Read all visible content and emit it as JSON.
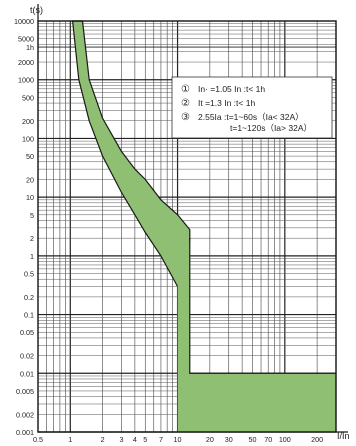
{
  "chart_data": {
    "type": "area",
    "title": "",
    "xlabel": "I/In",
    "ylabel": "t(s)",
    "xscale": "log",
    "yscale": "log",
    "xlim": [
      0.5,
      300
    ],
    "ylim": [
      0.001,
      10000
    ],
    "grid": true,
    "x_ticks": [
      {
        "v": 0.5,
        "label": "0.5"
      },
      {
        "v": 1,
        "label": "1"
      },
      {
        "v": 2,
        "label": "2"
      },
      {
        "v": 3,
        "label": "3"
      },
      {
        "v": 4,
        "label": "4"
      },
      {
        "v": 5,
        "label": "5"
      },
      {
        "v": 7,
        "label": "7"
      },
      {
        "v": 10,
        "label": "10"
      },
      {
        "v": 20,
        "label": "20"
      },
      {
        "v": 30,
        "label": "30"
      },
      {
        "v": 50,
        "label": "50"
      },
      {
        "v": 70,
        "label": "70"
      },
      {
        "v": 100,
        "label": "100"
      },
      {
        "v": 200,
        "label": "200"
      }
    ],
    "y_ticks": [
      {
        "v": 10000,
        "label": "10000"
      },
      {
        "v": 5000,
        "label": "5000"
      },
      {
        "v": 3600,
        "label": "1h"
      },
      {
        "v": 2000,
        "label": "2000"
      },
      {
        "v": 1000,
        "label": "1000"
      },
      {
        "v": 500,
        "label": "500"
      },
      {
        "v": 200,
        "label": "200"
      },
      {
        "v": 100,
        "label": "100"
      },
      {
        "v": 50,
        "label": "50"
      },
      {
        "v": 20,
        "label": "20"
      },
      {
        "v": 10,
        "label": "10"
      },
      {
        "v": 5,
        "label": "5"
      },
      {
        "v": 2,
        "label": "2"
      },
      {
        "v": 1,
        "label": "1"
      },
      {
        "v": 0.5,
        "label": "0.5"
      },
      {
        "v": 0.2,
        "label": "0.2"
      },
      {
        "v": 0.1,
        "label": "0.1"
      },
      {
        "v": 0.05,
        "label": "0.05"
      },
      {
        "v": 0.02,
        "label": "0.02"
      },
      {
        "v": 0.01,
        "label": "0.01"
      },
      {
        "v": 0.005,
        "label": "0.005"
      },
      {
        "v": 0.002,
        "label": "0.002"
      },
      {
        "v": 0.001,
        "label": "0.001"
      }
    ],
    "band": {
      "fill": "#8ebf73",
      "stroke": "#1a1a1a",
      "upper": [
        [
          1.3,
          10000
        ],
        [
          1.5,
          1000
        ],
        [
          2,
          220
        ],
        [
          3,
          60
        ],
        [
          4,
          30
        ],
        [
          5,
          20
        ],
        [
          7,
          9
        ],
        [
          10,
          5
        ],
        [
          13,
          2.8
        ],
        [
          13,
          2
        ]
      ],
      "lower": [
        [
          1.05,
          10000
        ],
        [
          1.2,
          1000
        ],
        [
          1.5,
          200
        ],
        [
          2,
          50
        ],
        [
          3,
          12
        ],
        [
          4,
          5
        ],
        [
          5,
          2.5
        ],
        [
          7,
          1
        ],
        [
          10,
          0.3
        ],
        [
          10,
          0.001
        ]
      ],
      "tail": {
        "t_min": 0.001,
        "t_max": 0.01,
        "x_max": 300
      }
    },
    "legend_position": "top-right",
    "legend": [
      {
        "marker": "①",
        "text": "In· =1.05 In :t< 1h"
      },
      {
        "marker": "②",
        "text": "It  =1.3 In :t< 1h"
      },
      {
        "marker": "③",
        "text": "2.55Ia :t=1~60s（Ia< 32A）"
      },
      {
        "marker": "",
        "text": "t=1~120s（Ia> 32A）"
      }
    ]
  }
}
